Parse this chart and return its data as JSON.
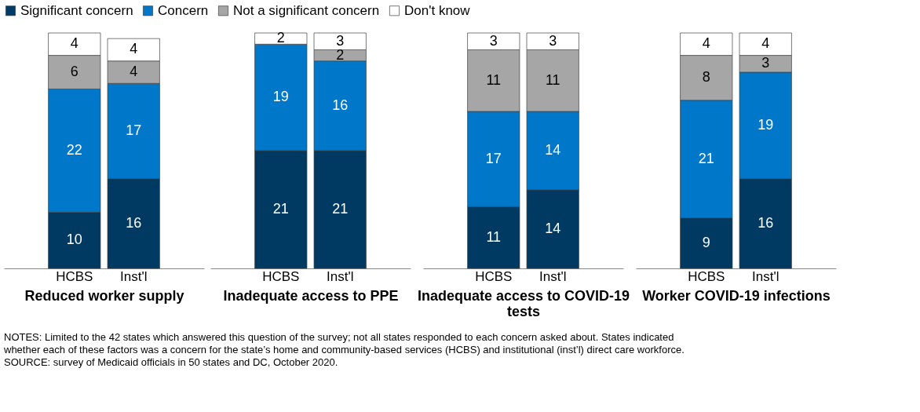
{
  "chart_data": [
    {
      "type": "bar",
      "stacked": true,
      "data_labels": true,
      "legend": "top",
      "xlabel": "Reduced worker supply",
      "categories": [
        "HCBS",
        "Inst'l"
      ],
      "series": [
        {
          "name": "Significant concern",
          "color": "#003a63",
          "values": [
            10,
            16
          ]
        },
        {
          "name": "Concern",
          "color": "#0077c8",
          "values": [
            22,
            17
          ]
        },
        {
          "name": "Not a significant concern",
          "color": "#a6a6a6",
          "values": [
            6,
            4
          ]
        },
        {
          "name": "Don't know",
          "color": "#ffffff",
          "values": [
            4,
            4
          ]
        }
      ],
      "annotations": [
        "NOTES: Limited to the 42 states which answered this question of the survey; not all states responded to each concern asked about. States indicated whether each of these factors was a concern for the state’s home and community-based services (HCBS) and institutional (inst’l) direct care workforce.",
        "SOURCE: survey of Medicaid officials in 50 states and DC, October 2020."
      ]
    },
    {
      "type": "bar",
      "stacked": true,
      "data_labels": true,
      "xlabel": "Inadequate access to PPE",
      "categories": [
        "HCBS",
        "Inst'l"
      ],
      "series": [
        {
          "name": "Significant concern",
          "color": "#003a63",
          "values": [
            21,
            21
          ]
        },
        {
          "name": "Concern",
          "color": "#0077c8",
          "values": [
            19,
            16
          ]
        },
        {
          "name": "Not a significant concern",
          "color": "#a6a6a6",
          "values": [
            null,
            2
          ]
        },
        {
          "name": "Don't know",
          "color": "#ffffff",
          "values": [
            2,
            3
          ]
        }
      ]
    },
    {
      "type": "bar",
      "stacked": true,
      "data_labels": true,
      "xlabel": "Inadequate access to COVID-19 tests",
      "categories": [
        "HCBS",
        "Inst'l"
      ],
      "series": [
        {
          "name": "Significant concern",
          "color": "#003a63",
          "values": [
            11,
            14
          ]
        },
        {
          "name": "Concern",
          "color": "#0077c8",
          "values": [
            17,
            14
          ]
        },
        {
          "name": "Not a significant concern",
          "color": "#a6a6a6",
          "values": [
            11,
            11
          ]
        },
        {
          "name": "Don't know",
          "color": "#ffffff",
          "values": [
            3,
            3
          ]
        }
      ]
    },
    {
      "type": "bar",
      "stacked": true,
      "data_labels": true,
      "xlabel": "Worker COVID-19 infections",
      "categories": [
        "HCBS",
        "Inst'l"
      ],
      "series": [
        {
          "name": "Significant concern",
          "color": "#003a63",
          "values": [
            9,
            16
          ]
        },
        {
          "name": "Concern",
          "color": "#0077c8",
          "values": [
            21,
            19
          ]
        },
        {
          "name": "Not a significant concern",
          "color": "#a6a6a6",
          "values": [
            8,
            3
          ]
        },
        {
          "name": "Don't know",
          "color": "#ffffff",
          "values": [
            4,
            4
          ]
        }
      ]
    }
  ]
}
